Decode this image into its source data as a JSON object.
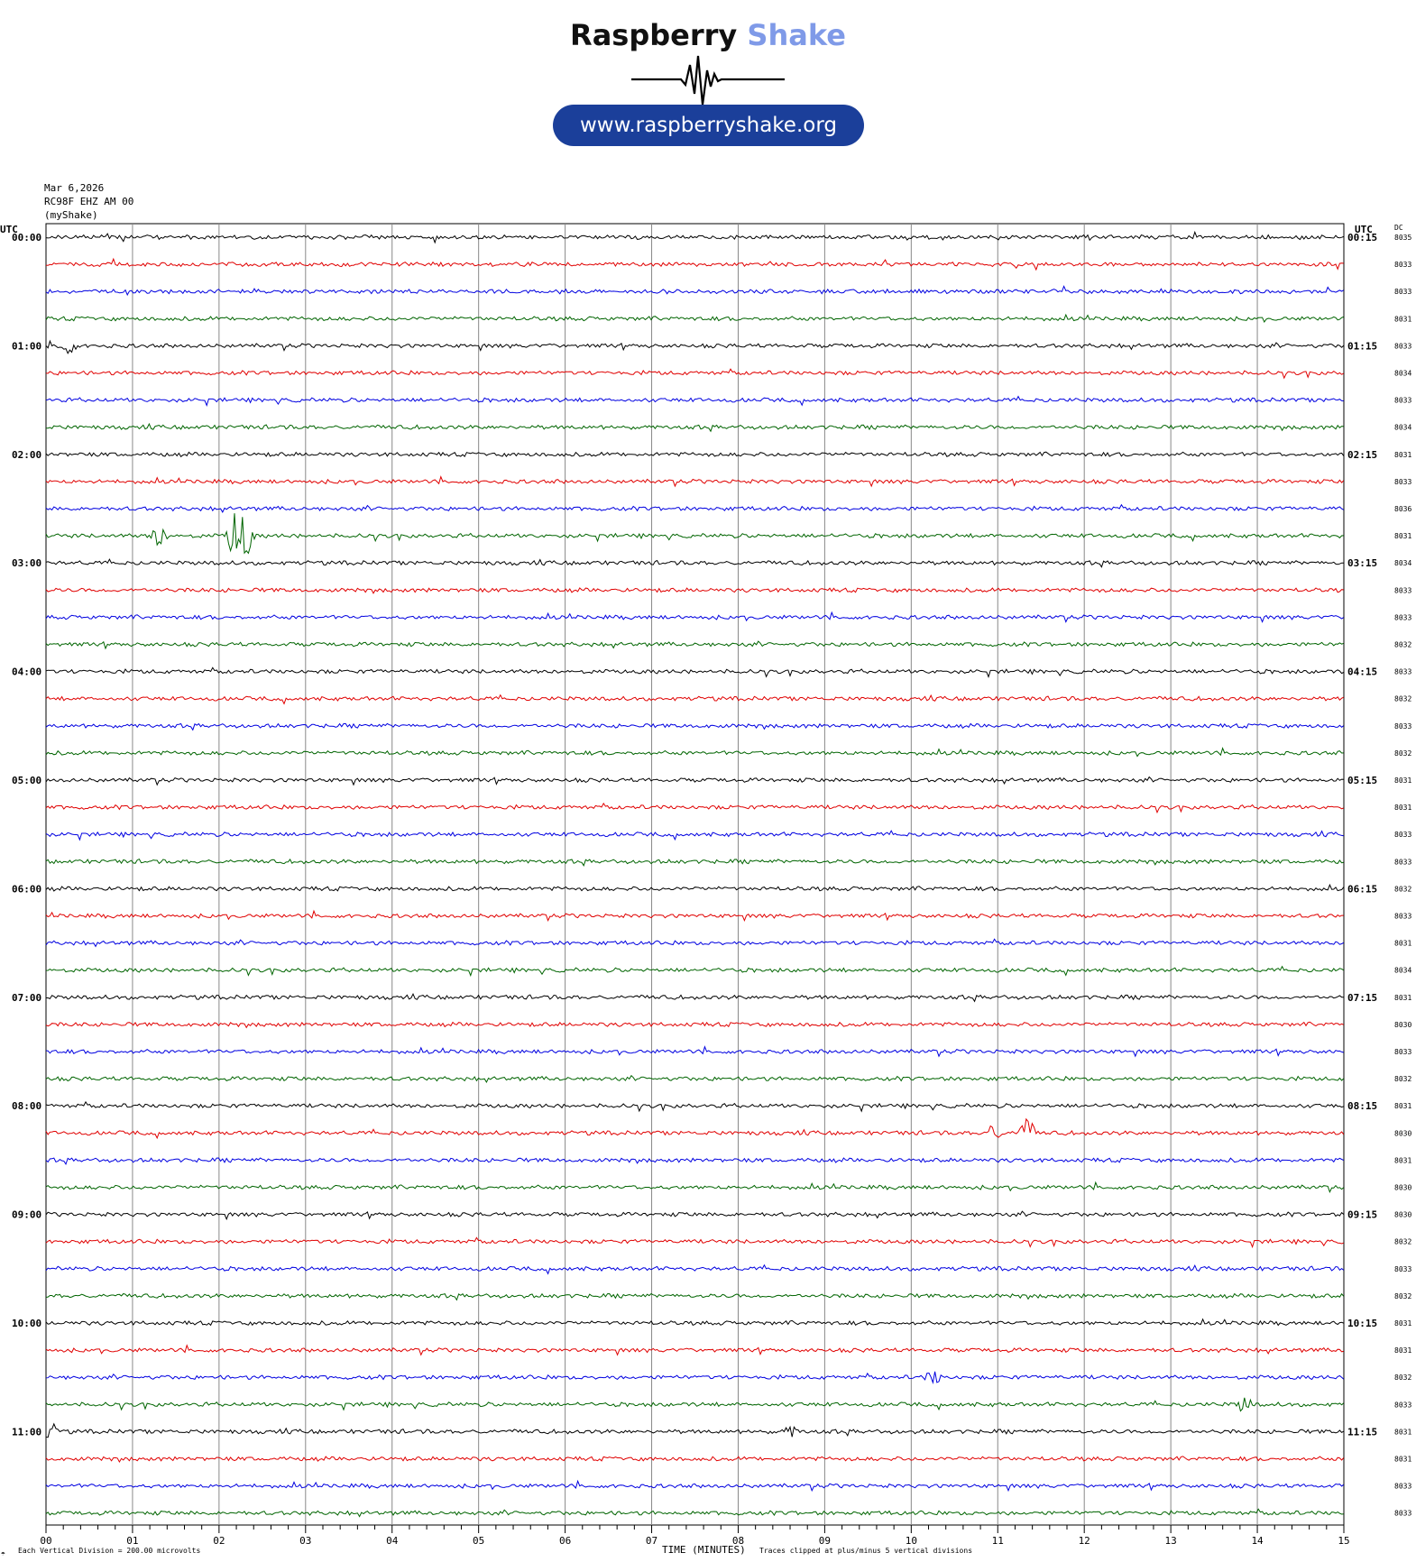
{
  "logo": {
    "brand_part1": "Raspberry",
    "brand_part2": "Shake",
    "url": "www.raspberryshake.org",
    "brand_color": "#7f9ae8",
    "pill_color": "#1b3f9a"
  },
  "header": {
    "date": "Mar 6,2026",
    "station": "RC98F EHZ AM 00",
    "source": "(myShake)"
  },
  "footer": {
    "corner_mark": "☂",
    "division_note": "Each Vertical Division =  200.00 microvolts",
    "xlabel": "TIME (MINUTES)",
    "clip_note": "Traces clipped at plus/minus 5 vertical divisions"
  },
  "chart_data": {
    "type": "line",
    "title": "",
    "xlabel": "TIME (MINUTES)",
    "x_ticks": [
      "00",
      "01",
      "02",
      "03",
      "04",
      "05",
      "06",
      "07",
      "08",
      "09",
      "10",
      "11",
      "12",
      "13",
      "14",
      "15"
    ],
    "xlim": [
      0,
      15
    ],
    "left_axis_title": "UTC",
    "right_axis_title": "UTC",
    "dc_title": "DC",
    "left_labels": [
      "00:00",
      "01:00",
      "02:00",
      "03:00",
      "04:00",
      "05:00",
      "06:00",
      "07:00",
      "08:00",
      "09:00",
      "10:00",
      "11:00"
    ],
    "right_labels": [
      "00:15",
      "01:15",
      "02:15",
      "03:15",
      "04:15",
      "05:15",
      "06:15",
      "07:15",
      "08:15",
      "09:15",
      "10:15",
      "11:15"
    ],
    "dc_values": [
      "8035",
      "8033",
      "8033",
      "8031",
      "8033",
      "8034",
      "8033",
      "8034",
      "8031",
      "8033",
      "8036",
      "8031",
      "8034",
      "8033",
      "8033",
      "8032",
      "8033",
      "8032",
      "8033",
      "8032",
      "8031",
      "8031",
      "8033",
      "8033",
      "8032",
      "8033",
      "8031",
      "8034",
      "8031",
      "8030",
      "8033",
      "8032",
      "8031",
      "8030",
      "8031",
      "8030",
      "8030",
      "8032",
      "8033",
      "8032",
      "8031",
      "8031",
      "8032",
      "8033",
      "8031",
      "8031",
      "8033",
      "8033"
    ],
    "trace_colors": [
      "#000000",
      "#e00000",
      "#0000e0",
      "#006400"
    ],
    "trace_count": 48,
    "minutes_per_trace": 15,
    "events": [
      {
        "trace": 4,
        "minute": 0.25,
        "amp": 0.4
      },
      {
        "trace": 11,
        "minute": 1.3,
        "amp": 0.5
      },
      {
        "trace": 11,
        "minute": 2.18,
        "amp": 0.9
      },
      {
        "trace": 11,
        "minute": 2.3,
        "amp": 1.0
      },
      {
        "trace": 33,
        "minute": 10.95,
        "amp": 0.35
      },
      {
        "trace": 33,
        "minute": 11.33,
        "amp": 0.7
      },
      {
        "trace": 42,
        "minute": 10.25,
        "amp": 0.3
      },
      {
        "trace": 44,
        "minute": 0.05,
        "amp": 0.35
      },
      {
        "trace": 44,
        "minute": 8.62,
        "amp": 0.25
      },
      {
        "trace": 43,
        "minute": 13.85,
        "amp": 0.3
      }
    ]
  }
}
